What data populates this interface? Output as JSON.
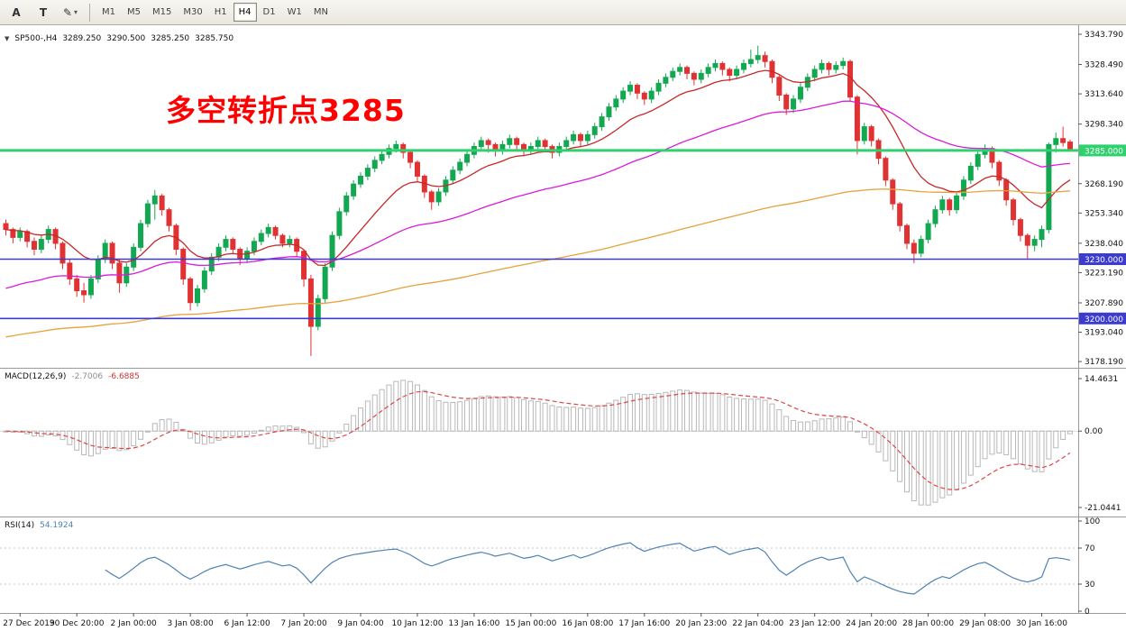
{
  "toolbar": {
    "tools": [
      {
        "label": "A",
        "name": "cursor-tool-a"
      },
      {
        "label": "T",
        "name": "text-tool-t"
      }
    ],
    "drawing_icon": "✎",
    "caret": "▾",
    "timeframes": [
      {
        "label": "M1",
        "active": false
      },
      {
        "label": "M5",
        "active": false
      },
      {
        "label": "M15",
        "active": false
      },
      {
        "label": "M30",
        "active": false
      },
      {
        "label": "H1",
        "active": false
      },
      {
        "label": "H4",
        "active": true
      },
      {
        "label": "D1",
        "active": false
      },
      {
        "label": "W1",
        "active": false
      },
      {
        "label": "MN",
        "active": false
      }
    ]
  },
  "chart_header": {
    "dropdown_icon": "▼",
    "symbol": "SP500-,H4",
    "open": "3289.250",
    "high": "3290.500",
    "low": "3285.250",
    "close": "3285.750"
  },
  "annotation": {
    "text": "多空转折点3285",
    "color": "#ff0000"
  },
  "price_scale": {
    "labels": [
      {
        "value": 3343.79,
        "text": "3343.790"
      },
      {
        "value": 3328.49,
        "text": "3328.490"
      },
      {
        "value": 3313.64,
        "text": "3313.640"
      },
      {
        "value": 3298.34,
        "text": "3298.340"
      },
      {
        "value": 3268.19,
        "text": "3268.190"
      },
      {
        "value": 3253.34,
        "text": "3253.340"
      },
      {
        "value": 3238.04,
        "text": "3238.040"
      },
      {
        "value": 3223.19,
        "text": "3223.190"
      },
      {
        "value": 3207.89,
        "text": "3207.890"
      },
      {
        "value": 3193.04,
        "text": "3193.040"
      },
      {
        "value": 3178.19,
        "text": "3178.190"
      }
    ]
  },
  "price_lines": [
    {
      "value": 3285.0,
      "label": "3285.000",
      "color": "#2fd06e",
      "width": 3
    },
    {
      "value": 3230.0,
      "label": "3230.000",
      "color": "#3b3bd0",
      "width": 1.6
    },
    {
      "value": 3200.0,
      "label": "3200.000",
      "color": "#3b3bd0",
      "width": 1.6
    }
  ],
  "indicators": {
    "macd": {
      "label": "MACD(12,26,9)",
      "value": "-2.7006",
      "signal_value": "-6.6885",
      "scale": [
        {
          "value": 14.4631,
          "text": "14.4631"
        },
        {
          "value": 0,
          "text": "0.00"
        },
        {
          "value": -21.0441,
          "text": "-21.0441"
        }
      ]
    },
    "rsi": {
      "label": "RSI(14)",
      "value": "54.1924",
      "levels": [
        70,
        30
      ],
      "scale": [
        {
          "value": 100,
          "text": "100"
        },
        {
          "value": 70,
          "text": "70"
        },
        {
          "value": 30,
          "text": "30"
        },
        {
          "value": 0,
          "text": "0"
        }
      ]
    }
  },
  "time_axis": {
    "labels": [
      {
        "text": "27 Dec 2019",
        "bar": 2
      },
      {
        "text": "30 Dec 20:00",
        "bar": 10
      },
      {
        "text": "2 Jan 00:00",
        "bar": 18
      },
      {
        "text": "3 Jan 08:00",
        "bar": 26
      },
      {
        "text": "6 Jan 12:00",
        "bar": 34
      },
      {
        "text": "7 Jan 20:00",
        "bar": 42
      },
      {
        "text": "9 Jan 04:00",
        "bar": 50
      },
      {
        "text": "10 Jan 12:00",
        "bar": 58
      },
      {
        "text": "13 Jan 16:00",
        "bar": 66
      },
      {
        "text": "15 Jan 00:00",
        "bar": 74
      },
      {
        "text": "16 Jan 08:00",
        "bar": 82
      },
      {
        "text": "17 Jan 16:00",
        "bar": 90
      },
      {
        "text": "20 Jan 23:00",
        "bar": 98
      },
      {
        "text": "22 Jan 04:00",
        "bar": 106
      },
      {
        "text": "23 Jan 12:00",
        "bar": 114
      },
      {
        "text": "24 Jan 20:00",
        "bar": 122
      },
      {
        "text": "28 Jan 00:00",
        "bar": 130
      },
      {
        "text": "29 Jan 08:00",
        "bar": 138
      },
      {
        "text": "30 Jan 16:00",
        "bar": 146
      }
    ]
  },
  "chart_data": {
    "type": "candlestick",
    "symbol": "SP500-",
    "timeframe": "H4",
    "visible_price_range": [
      3178.19,
      3343.79
    ],
    "colors": {
      "up": "#12a851",
      "down": "#e03232",
      "macd_hist": "#b8b8b8",
      "macd_signal": "#e04646",
      "rsi": "#4f81b4"
    },
    "moving_averages": [
      {
        "name": "ma-fast-red",
        "color": "#c62828",
        "period": 14,
        "width": 1.3
      },
      {
        "name": "ma-mid-magenta",
        "color": "#d81bd8",
        "period": 50,
        "width": 1.3,
        "seed": 3214
      },
      {
        "name": "ma-slow-orange",
        "color": "#e6a23c",
        "period": 170,
        "width": 1.3,
        "seed": 3190
      }
    ],
    "macd_params": [
      12,
      26,
      9
    ],
    "rsi_period": 14,
    "candles": [
      [
        3248,
        3250,
        3242,
        3245
      ],
      [
        3245,
        3246,
        3238,
        3241
      ],
      [
        3241,
        3246,
        3239,
        3244
      ],
      [
        3244,
        3245,
        3236,
        3239
      ],
      [
        3239,
        3241,
        3232,
        3235
      ],
      [
        3235,
        3242,
        3233,
        3240
      ],
      [
        3240,
        3247,
        3238,
        3245
      ],
      [
        3245,
        3246,
        3235,
        3238
      ],
      [
        3238,
        3239,
        3225,
        3228
      ],
      [
        3228,
        3230,
        3217,
        3220
      ],
      [
        3220,
        3222,
        3211,
        3214
      ],
      [
        3214,
        3218,
        3208,
        3212
      ],
      [
        3212,
        3222,
        3210,
        3220
      ],
      [
        3220,
        3232,
        3218,
        3230
      ],
      [
        3230,
        3240,
        3228,
        3238
      ],
      [
        3238,
        3239,
        3225,
        3228
      ],
      [
        3228,
        3230,
        3213,
        3218
      ],
      [
        3218,
        3228,
        3216,
        3226
      ],
      [
        3226,
        3238,
        3224,
        3236
      ],
      [
        3236,
        3250,
        3234,
        3248
      ],
      [
        3248,
        3260,
        3246,
        3258
      ],
      [
        3258,
        3265,
        3250,
        3262
      ],
      [
        3262,
        3263,
        3252,
        3255
      ],
      [
        3255,
        3256,
        3244,
        3247
      ],
      [
        3247,
        3248,
        3232,
        3235
      ],
      [
        3235,
        3236,
        3217,
        3220
      ],
      [
        3220,
        3221,
        3204,
        3208
      ],
      [
        3208,
        3217,
        3206,
        3215
      ],
      [
        3215,
        3226,
        3213,
        3224
      ],
      [
        3224,
        3233,
        3222,
        3231
      ],
      [
        3231,
        3238,
        3229,
        3236
      ],
      [
        3236,
        3242,
        3234,
        3240
      ],
      [
        3240,
        3241,
        3233,
        3235
      ],
      [
        3235,
        3236,
        3227,
        3230
      ],
      [
        3230,
        3236,
        3228,
        3234
      ],
      [
        3234,
        3241,
        3232,
        3239
      ],
      [
        3239,
        3245,
        3237,
        3243
      ],
      [
        3243,
        3248,
        3241,
        3246
      ],
      [
        3246,
        3247,
        3240,
        3242
      ],
      [
        3242,
        3243,
        3236,
        3238
      ],
      [
        3238,
        3242,
        3236,
        3240
      ],
      [
        3240,
        3241,
        3231,
        3234
      ],
      [
        3234,
        3235,
        3216,
        3220
      ],
      [
        3220,
        3222,
        3181,
        3196
      ],
      [
        3196,
        3212,
        3194,
        3210
      ],
      [
        3210,
        3228,
        3208,
        3226
      ],
      [
        3226,
        3244,
        3224,
        3242
      ],
      [
        3242,
        3256,
        3240,
        3254
      ],
      [
        3254,
        3264,
        3252,
        3262
      ],
      [
        3262,
        3270,
        3260,
        3268
      ],
      [
        3268,
        3274,
        3266,
        3272
      ],
      [
        3272,
        3278,
        3270,
        3276
      ],
      [
        3276,
        3282,
        3274,
        3280
      ],
      [
        3280,
        3285,
        3278,
        3283
      ],
      [
        3283,
        3288,
        3281,
        3286
      ],
      [
        3286,
        3290,
        3284,
        3288
      ],
      [
        3288,
        3289,
        3281,
        3284
      ],
      [
        3284,
        3285,
        3276,
        3279
      ],
      [
        3279,
        3280,
        3269,
        3272
      ],
      [
        3272,
        3273,
        3261,
        3264
      ],
      [
        3264,
        3265,
        3255,
        3259
      ],
      [
        3259,
        3266,
        3257,
        3264
      ],
      [
        3264,
        3272,
        3262,
        3270
      ],
      [
        3270,
        3277,
        3268,
        3275
      ],
      [
        3275,
        3281,
        3273,
        3279
      ],
      [
        3279,
        3285,
        3277,
        3283
      ],
      [
        3283,
        3289,
        3281,
        3287
      ],
      [
        3287,
        3292,
        3285,
        3290
      ],
      [
        3290,
        3291,
        3284,
        3288
      ],
      [
        3288,
        3289,
        3282,
        3285
      ],
      [
        3285,
        3290,
        3283,
        3288
      ],
      [
        3288,
        3293,
        3286,
        3291
      ],
      [
        3291,
        3292,
        3285,
        3288
      ],
      [
        3288,
        3289,
        3282,
        3285
      ],
      [
        3285,
        3289,
        3283,
        3287
      ],
      [
        3287,
        3292,
        3285,
        3290
      ],
      [
        3290,
        3291,
        3284,
        3287
      ],
      [
        3287,
        3288,
        3281,
        3284
      ],
      [
        3284,
        3289,
        3282,
        3287
      ],
      [
        3287,
        3292,
        3285,
        3290
      ],
      [
        3290,
        3295,
        3288,
        3293
      ],
      [
        3293,
        3294,
        3287,
        3290
      ],
      [
        3290,
        3295,
        3288,
        3293
      ],
      [
        3293,
        3299,
        3291,
        3297
      ],
      [
        3297,
        3304,
        3295,
        3302
      ],
      [
        3302,
        3309,
        3300,
        3307
      ],
      [
        3307,
        3313,
        3305,
        3311
      ],
      [
        3311,
        3317,
        3309,
        3315
      ],
      [
        3315,
        3320,
        3313,
        3318
      ],
      [
        3318,
        3319,
        3311,
        3314
      ],
      [
        3314,
        3315,
        3308,
        3311
      ],
      [
        3311,
        3317,
        3309,
        3315
      ],
      [
        3315,
        3321,
        3313,
        3319
      ],
      [
        3319,
        3324,
        3317,
        3322
      ],
      [
        3322,
        3327,
        3320,
        3325
      ],
      [
        3325,
        3329,
        3323,
        3327
      ],
      [
        3327,
        3328,
        3321,
        3324
      ],
      [
        3324,
        3325,
        3318,
        3321
      ],
      [
        3321,
        3326,
        3319,
        3324
      ],
      [
        3324,
        3329,
        3322,
        3327
      ],
      [
        3327,
        3331,
        3325,
        3329
      ],
      [
        3329,
        3330,
        3323,
        3326
      ],
      [
        3326,
        3327,
        3320,
        3323
      ],
      [
        3323,
        3328,
        3321,
        3326
      ],
      [
        3326,
        3331,
        3324,
        3329
      ],
      [
        3329,
        3336,
        3327,
        3331
      ],
      [
        3331,
        3338,
        3329,
        3333
      ],
      [
        3333,
        3335,
        3327,
        3330
      ],
      [
        3330,
        3331,
        3319,
        3322
      ],
      [
        3322,
        3323,
        3310,
        3313
      ],
      [
        3313,
        3314,
        3303,
        3306
      ],
      [
        3306,
        3313,
        3304,
        3311
      ],
      [
        3311,
        3319,
        3309,
        3317
      ],
      [
        3317,
        3324,
        3315,
        3322
      ],
      [
        3322,
        3328,
        3320,
        3326
      ],
      [
        3326,
        3331,
        3324,
        3329
      ],
      [
        3329,
        3330,
        3323,
        3326
      ],
      [
        3326,
        3330,
        3324,
        3328
      ],
      [
        3328,
        3332,
        3326,
        3330
      ],
      [
        3330,
        3331,
        3310,
        3312
      ],
      [
        3312,
        3313,
        3283,
        3290
      ],
      [
        3290,
        3299,
        3288,
        3297
      ],
      [
        3297,
        3298,
        3287,
        3290
      ],
      [
        3290,
        3291,
        3278,
        3281
      ],
      [
        3281,
        3282,
        3267,
        3270
      ],
      [
        3270,
        3271,
        3255,
        3258
      ],
      [
        3258,
        3259,
        3244,
        3247
      ],
      [
        3247,
        3248,
        3235,
        3238
      ],
      [
        3238,
        3240,
        3228,
        3233
      ],
      [
        3233,
        3242,
        3231,
        3240
      ],
      [
        3240,
        3250,
        3238,
        3248
      ],
      [
        3248,
        3257,
        3246,
        3255
      ],
      [
        3255,
        3262,
        3253,
        3260
      ],
      [
        3260,
        3261,
        3252,
        3255
      ],
      [
        3255,
        3264,
        3253,
        3262
      ],
      [
        3262,
        3272,
        3260,
        3270
      ],
      [
        3270,
        3279,
        3268,
        3277
      ],
      [
        3277,
        3285,
        3275,
        3283
      ],
      [
        3283,
        3288,
        3281,
        3286
      ],
      [
        3286,
        3287,
        3276,
        3279
      ],
      [
        3279,
        3280,
        3267,
        3270
      ],
      [
        3270,
        3271,
        3257,
        3260
      ],
      [
        3260,
        3261,
        3247,
        3250
      ],
      [
        3250,
        3251,
        3239,
        3242
      ],
      [
        3242,
        3243,
        3230,
        3237
      ],
      [
        3237,
        3242,
        3234,
        3240
      ],
      [
        3240,
        3247,
        3236,
        3245
      ],
      [
        3245,
        3289,
        3243,
        3288
      ],
      [
        3288,
        3294,
        3284,
        3291
      ],
      [
        3291,
        3297,
        3287,
        3289
      ],
      [
        3289.25,
        3290.5,
        3285.25,
        3285.75
      ]
    ]
  }
}
